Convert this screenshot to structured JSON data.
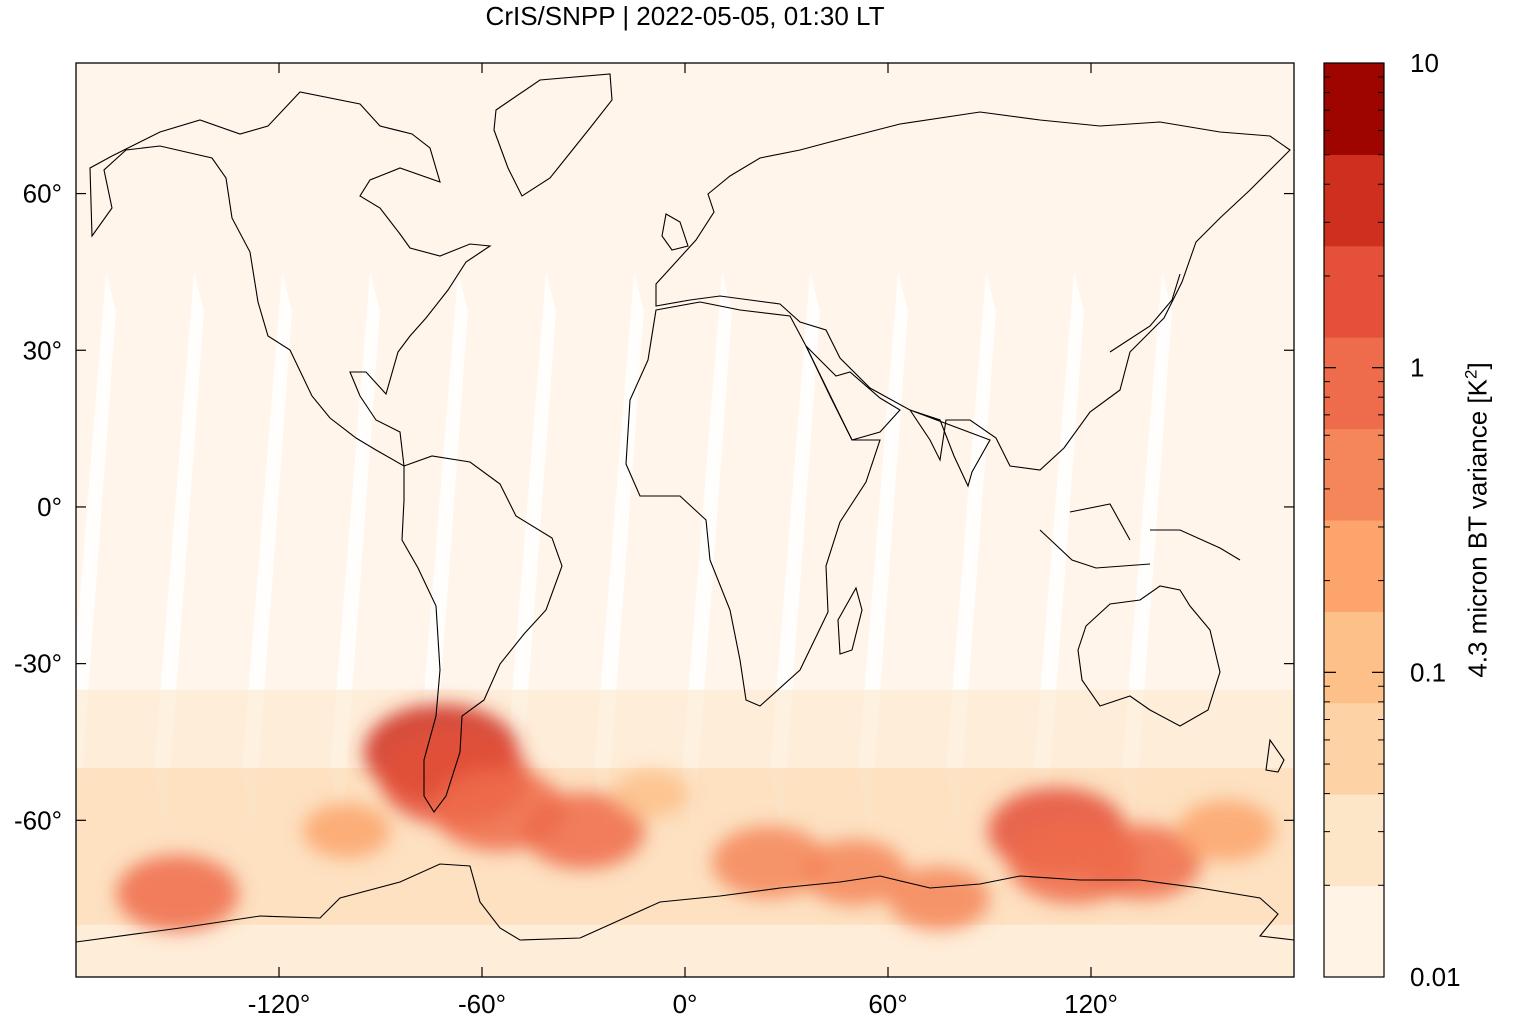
{
  "title": "CrIS/SNPP | 2022-05-05, 01:30 LT",
  "chart_data": {
    "type": "heatmap",
    "title": "CrIS/SNPP | 2022-05-05, 01:30 LT",
    "xlabel": "",
    "ylabel": "",
    "xlim": [
      -180,
      180
    ],
    "ylim": [
      -90,
      85
    ],
    "x_ticks": [
      {
        "value": -120,
        "label": "-120°"
      },
      {
        "value": -60,
        "label": "-60°"
      },
      {
        "value": 0,
        "label": "0°"
      },
      {
        "value": 60,
        "label": "60°"
      },
      {
        "value": 120,
        "label": "120°"
      }
    ],
    "y_ticks": [
      {
        "value": 60,
        "label": "60°"
      },
      {
        "value": 30,
        "label": "30°"
      },
      {
        "value": 0,
        "label": "0°"
      },
      {
        "value": -30,
        "label": "-30°"
      },
      {
        "value": -60,
        "label": "-60°"
      }
    ],
    "colorbar": {
      "label_main": "4.3 micron BT variance [K",
      "label_sup": "2",
      "label_end": "]",
      "scale": "log",
      "range": [
        0.01,
        10
      ],
      "tick_labels": [
        {
          "value": 10,
          "label": "10"
        },
        {
          "value": 1,
          "label": "1"
        },
        {
          "value": 0.1,
          "label": "0.1"
        },
        {
          "value": 0.01,
          "label": "0.01"
        }
      ],
      "colors": [
        "#fff3e6",
        "#fde5c8",
        "#fdd3a6",
        "#fdc088",
        "#fca46b",
        "#f5865a",
        "#ee6b4b",
        "#e4503a",
        "#cf2f1f",
        "#9e0400"
      ]
    },
    "background_color": "#fff5eb",
    "gap_color": "#ffffff",
    "hotspots": [
      {
        "lon": -72,
        "lat": -47,
        "value": 3.0
      },
      {
        "lon": -68,
        "lat": -52,
        "value": 2.5
      },
      {
        "lon": -55,
        "lat": -58,
        "value": 1.2
      },
      {
        "lon": -30,
        "lat": -62,
        "value": 0.8
      },
      {
        "lon": 110,
        "lat": -62,
        "value": 1.5
      },
      {
        "lon": 115,
        "lat": -68,
        "value": 1.2
      },
      {
        "lon": 135,
        "lat": -68,
        "value": 0.7
      },
      {
        "lon": -150,
        "lat": -74,
        "value": 0.8
      },
      {
        "lon": 25,
        "lat": -68,
        "value": 0.6
      },
      {
        "lon": 50,
        "lat": -70,
        "value": 0.4
      },
      {
        "lon": 75,
        "lat": -75,
        "value": 0.35
      },
      {
        "lon": -100,
        "lat": -62,
        "value": 0.2
      },
      {
        "lon": 160,
        "lat": -62,
        "value": 0.3
      },
      {
        "lon": -10,
        "lat": -55,
        "value": 0.12
      }
    ]
  }
}
